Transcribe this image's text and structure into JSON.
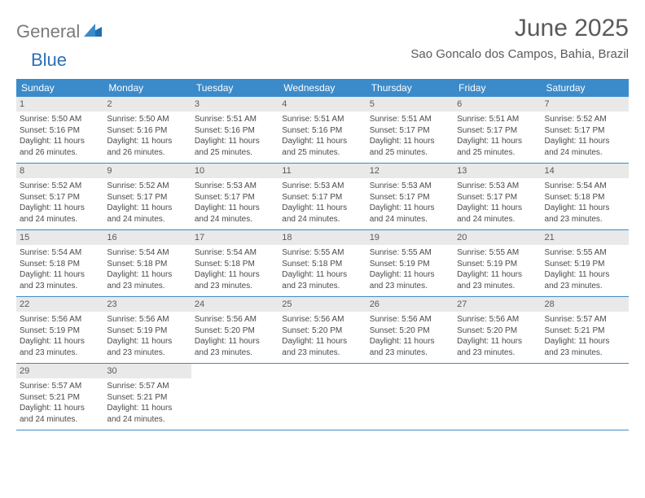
{
  "logo": {
    "text1": "General",
    "text2": "Blue"
  },
  "title": "June 2025",
  "location": "Sao Goncalo dos Campos, Bahia, Brazil",
  "colors": {
    "header_bg": "#3b8bca",
    "header_text": "#ffffff",
    "daynum_bg": "#e9e9e9",
    "text": "#4a4a4a",
    "title_text": "#5a5a5a",
    "row_border": "#3b8bca",
    "logo_gray": "#7a7a7a",
    "logo_blue": "#2c6fbb",
    "logo_mark": "#1f6fb0"
  },
  "typography": {
    "title_fontsize": 30,
    "location_fontsize": 15,
    "header_fontsize": 12,
    "daynum_fontsize": 11,
    "body_fontsize": 10
  },
  "day_headers": [
    "Sunday",
    "Monday",
    "Tuesday",
    "Wednesday",
    "Thursday",
    "Friday",
    "Saturday"
  ],
  "weeks": [
    [
      {
        "n": "1",
        "sunrise": "Sunrise: 5:50 AM",
        "sunset": "Sunset: 5:16 PM",
        "day1": "Daylight: 11 hours",
        "day2": "and 26 minutes."
      },
      {
        "n": "2",
        "sunrise": "Sunrise: 5:50 AM",
        "sunset": "Sunset: 5:16 PM",
        "day1": "Daylight: 11 hours",
        "day2": "and 26 minutes."
      },
      {
        "n": "3",
        "sunrise": "Sunrise: 5:51 AM",
        "sunset": "Sunset: 5:16 PM",
        "day1": "Daylight: 11 hours",
        "day2": "and 25 minutes."
      },
      {
        "n": "4",
        "sunrise": "Sunrise: 5:51 AM",
        "sunset": "Sunset: 5:16 PM",
        "day1": "Daylight: 11 hours",
        "day2": "and 25 minutes."
      },
      {
        "n": "5",
        "sunrise": "Sunrise: 5:51 AM",
        "sunset": "Sunset: 5:17 PM",
        "day1": "Daylight: 11 hours",
        "day2": "and 25 minutes."
      },
      {
        "n": "6",
        "sunrise": "Sunrise: 5:51 AM",
        "sunset": "Sunset: 5:17 PM",
        "day1": "Daylight: 11 hours",
        "day2": "and 25 minutes."
      },
      {
        "n": "7",
        "sunrise": "Sunrise: 5:52 AM",
        "sunset": "Sunset: 5:17 PM",
        "day1": "Daylight: 11 hours",
        "day2": "and 24 minutes."
      }
    ],
    [
      {
        "n": "8",
        "sunrise": "Sunrise: 5:52 AM",
        "sunset": "Sunset: 5:17 PM",
        "day1": "Daylight: 11 hours",
        "day2": "and 24 minutes."
      },
      {
        "n": "9",
        "sunrise": "Sunrise: 5:52 AM",
        "sunset": "Sunset: 5:17 PM",
        "day1": "Daylight: 11 hours",
        "day2": "and 24 minutes."
      },
      {
        "n": "10",
        "sunrise": "Sunrise: 5:53 AM",
        "sunset": "Sunset: 5:17 PM",
        "day1": "Daylight: 11 hours",
        "day2": "and 24 minutes."
      },
      {
        "n": "11",
        "sunrise": "Sunrise: 5:53 AM",
        "sunset": "Sunset: 5:17 PM",
        "day1": "Daylight: 11 hours",
        "day2": "and 24 minutes."
      },
      {
        "n": "12",
        "sunrise": "Sunrise: 5:53 AM",
        "sunset": "Sunset: 5:17 PM",
        "day1": "Daylight: 11 hours",
        "day2": "and 24 minutes."
      },
      {
        "n": "13",
        "sunrise": "Sunrise: 5:53 AM",
        "sunset": "Sunset: 5:17 PM",
        "day1": "Daylight: 11 hours",
        "day2": "and 24 minutes."
      },
      {
        "n": "14",
        "sunrise": "Sunrise: 5:54 AM",
        "sunset": "Sunset: 5:18 PM",
        "day1": "Daylight: 11 hours",
        "day2": "and 23 minutes."
      }
    ],
    [
      {
        "n": "15",
        "sunrise": "Sunrise: 5:54 AM",
        "sunset": "Sunset: 5:18 PM",
        "day1": "Daylight: 11 hours",
        "day2": "and 23 minutes."
      },
      {
        "n": "16",
        "sunrise": "Sunrise: 5:54 AM",
        "sunset": "Sunset: 5:18 PM",
        "day1": "Daylight: 11 hours",
        "day2": "and 23 minutes."
      },
      {
        "n": "17",
        "sunrise": "Sunrise: 5:54 AM",
        "sunset": "Sunset: 5:18 PM",
        "day1": "Daylight: 11 hours",
        "day2": "and 23 minutes."
      },
      {
        "n": "18",
        "sunrise": "Sunrise: 5:55 AM",
        "sunset": "Sunset: 5:18 PM",
        "day1": "Daylight: 11 hours",
        "day2": "and 23 minutes."
      },
      {
        "n": "19",
        "sunrise": "Sunrise: 5:55 AM",
        "sunset": "Sunset: 5:19 PM",
        "day1": "Daylight: 11 hours",
        "day2": "and 23 minutes."
      },
      {
        "n": "20",
        "sunrise": "Sunrise: 5:55 AM",
        "sunset": "Sunset: 5:19 PM",
        "day1": "Daylight: 11 hours",
        "day2": "and 23 minutes."
      },
      {
        "n": "21",
        "sunrise": "Sunrise: 5:55 AM",
        "sunset": "Sunset: 5:19 PM",
        "day1": "Daylight: 11 hours",
        "day2": "and 23 minutes."
      }
    ],
    [
      {
        "n": "22",
        "sunrise": "Sunrise: 5:56 AM",
        "sunset": "Sunset: 5:19 PM",
        "day1": "Daylight: 11 hours",
        "day2": "and 23 minutes."
      },
      {
        "n": "23",
        "sunrise": "Sunrise: 5:56 AM",
        "sunset": "Sunset: 5:19 PM",
        "day1": "Daylight: 11 hours",
        "day2": "and 23 minutes."
      },
      {
        "n": "24",
        "sunrise": "Sunrise: 5:56 AM",
        "sunset": "Sunset: 5:20 PM",
        "day1": "Daylight: 11 hours",
        "day2": "and 23 minutes."
      },
      {
        "n": "25",
        "sunrise": "Sunrise: 5:56 AM",
        "sunset": "Sunset: 5:20 PM",
        "day1": "Daylight: 11 hours",
        "day2": "and 23 minutes."
      },
      {
        "n": "26",
        "sunrise": "Sunrise: 5:56 AM",
        "sunset": "Sunset: 5:20 PM",
        "day1": "Daylight: 11 hours",
        "day2": "and 23 minutes."
      },
      {
        "n": "27",
        "sunrise": "Sunrise: 5:56 AM",
        "sunset": "Sunset: 5:20 PM",
        "day1": "Daylight: 11 hours",
        "day2": "and 23 minutes."
      },
      {
        "n": "28",
        "sunrise": "Sunrise: 5:57 AM",
        "sunset": "Sunset: 5:21 PM",
        "day1": "Daylight: 11 hours",
        "day2": "and 23 minutes."
      }
    ],
    [
      {
        "n": "29",
        "sunrise": "Sunrise: 5:57 AM",
        "sunset": "Sunset: 5:21 PM",
        "day1": "Daylight: 11 hours",
        "day2": "and 24 minutes."
      },
      {
        "n": "30",
        "sunrise": "Sunrise: 5:57 AM",
        "sunset": "Sunset: 5:21 PM",
        "day1": "Daylight: 11 hours",
        "day2": "and 24 minutes."
      },
      {
        "empty": true
      },
      {
        "empty": true
      },
      {
        "empty": true
      },
      {
        "empty": true
      },
      {
        "empty": true
      }
    ]
  ]
}
